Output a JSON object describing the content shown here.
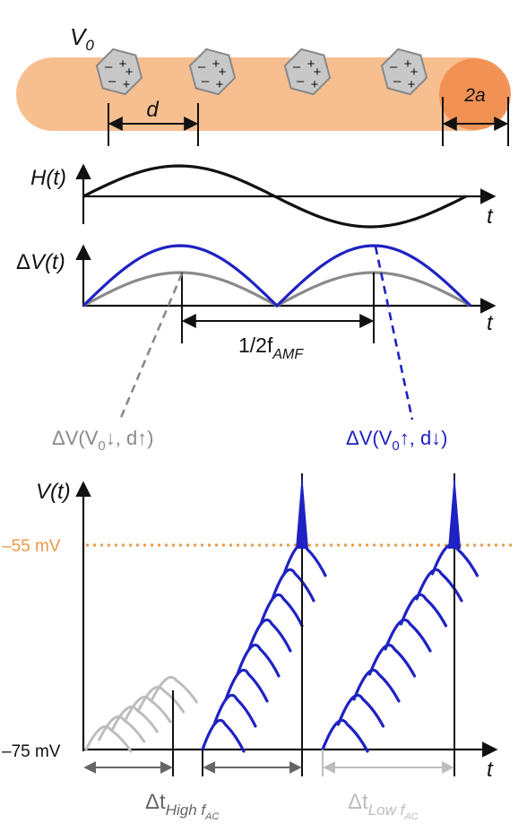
{
  "colors": {
    "axon": "#f7bf90",
    "node": "#ef8c4e",
    "particle_fill": "#c8c8c8",
    "particle_stroke": "#888888",
    "black": "#111111",
    "blue": "#1f22c2",
    "gray": "#8a8a8a",
    "light_gray": "#bdbdbd",
    "arrow_gray": "#666666",
    "threshold": "#e89a48"
  },
  "top_panel": {
    "potential_label_main": "V",
    "potential_label_sub": "0",
    "spacing_label": "d",
    "radius_label": "2a",
    "particle_count": 4,
    "particle_charges": {
      "minus": "–",
      "plus": "+"
    }
  },
  "field_panel": {
    "ylabel": "H(t)",
    "xlabel": "t",
    "shape": "sine"
  },
  "voltage_panel": {
    "ylabel_prefix": "Δ",
    "ylabel": "V(t)",
    "xlabel": "t",
    "period_label_main": "1/2f",
    "period_label_sub": "AMF",
    "annotation_gray": {
      "prefix": "ΔV(V",
      "sub": "0",
      "suffix": "↓, d↑)"
    },
    "annotation_blue": {
      "prefix": "ΔV(V",
      "sub": "0",
      "suffix": "↑, d↓)"
    }
  },
  "membrane_panel": {
    "ylabel": "V(t)",
    "xlabel": "t",
    "threshold_label": "–55 mV",
    "rest_label": "–75 mV",
    "interval_high": {
      "main": "Δt",
      "sub": "High f",
      "subsub": "AC"
    },
    "interval_low": {
      "main": "Δt",
      "sub": "Low f",
      "subsub": "AC"
    },
    "ramp_gray_bumps": 6,
    "ramp_blue_bumps": 8
  }
}
